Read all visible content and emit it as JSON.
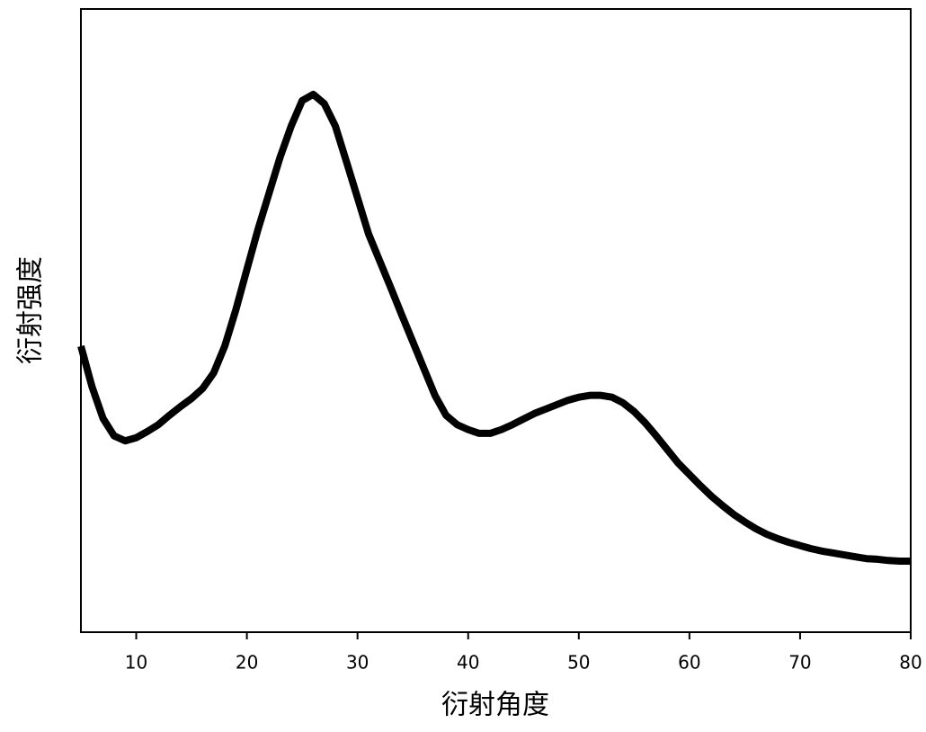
{
  "chart_data": {
    "type": "line",
    "xlabel": "衍射角度",
    "ylabel": "衍射强度",
    "x": [
      5,
      6,
      7,
      8,
      9,
      10,
      11,
      12,
      13,
      14,
      15,
      16,
      17,
      18,
      19,
      20,
      21,
      22,
      23,
      24,
      25,
      26,
      27,
      28,
      29,
      30,
      31,
      32,
      33,
      34,
      35,
      36,
      37,
      38,
      39,
      40,
      41,
      42,
      43,
      44,
      45,
      46,
      47,
      48,
      49,
      50,
      51,
      52,
      53,
      54,
      55,
      56,
      57,
      58,
      59,
      60,
      61,
      62,
      63,
      64,
      65,
      66,
      67,
      68,
      69,
      70,
      71,
      72,
      73,
      74,
      75,
      76,
      77,
      78,
      79,
      80
    ],
    "values": [
      45.9,
      39.4,
      34.3,
      31.5,
      30.7,
      31.2,
      32.2,
      33.3,
      34.8,
      36.2,
      37.5,
      39.1,
      41.6,
      45.9,
      51.7,
      58.2,
      64.6,
      70.4,
      76.2,
      81.2,
      85.3,
      86.3,
      84.8,
      81.2,
      75.5,
      69.7,
      63.9,
      59.6,
      55.3,
      50.9,
      46.6,
      42.3,
      38.0,
      34.8,
      33.3,
      32.5,
      31.9,
      31.9,
      32.5,
      33.3,
      34.2,
      35.1,
      35.8,
      36.5,
      37.2,
      37.7,
      38.0,
      38.0,
      37.7,
      36.8,
      35.4,
      33.6,
      31.5,
      29.3,
      27.1,
      25.3,
      23.5,
      21.8,
      20.3,
      18.9,
      17.7,
      16.6,
      15.7,
      15.0,
      14.4,
      13.9,
      13.4,
      13.0,
      12.7,
      12.4,
      12.1,
      11.8,
      11.7,
      11.5,
      11.4,
      11.4
    ],
    "color": "#000000",
    "xlim": [
      5,
      80
    ],
    "xticks": [
      10,
      20,
      30,
      40,
      50,
      60,
      70,
      80
    ],
    "ylim": [
      0,
      100
    ]
  }
}
